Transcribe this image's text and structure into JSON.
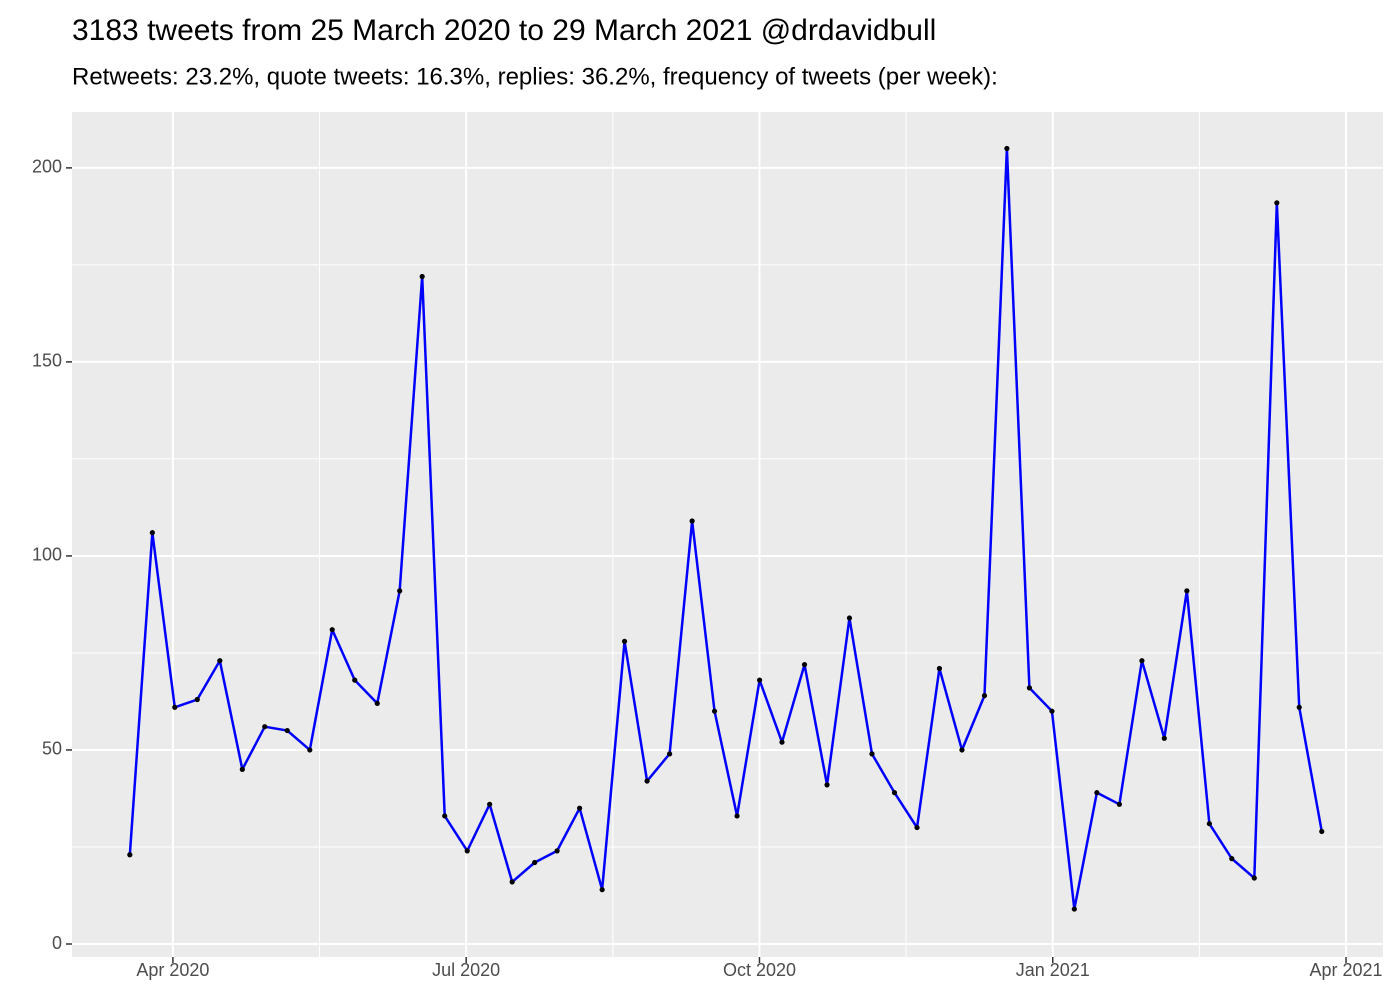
{
  "chart_data": {
    "type": "line",
    "title": "3183 tweets from 25 March 2020 to 29 March 2021 @drdavidbull",
    "subtitle": "Retweets: 23.2%, quote tweets: 16.3%, replies: 36.2%, frequency of tweets (per week):",
    "x": [
      2020.2133,
      2020.2325,
      2020.2516,
      2020.2708,
      2020.29,
      2020.3092,
      2020.3283,
      2020.3475,
      2020.3667,
      2020.3858,
      2020.405,
      2020.4242,
      2020.4433,
      2020.4625,
      2020.4817,
      2020.5009,
      2020.52,
      2020.5392,
      2020.5584,
      2020.5775,
      2020.5967,
      2020.6159,
      2020.635,
      2020.6542,
      2020.6734,
      2020.6926,
      2020.7117,
      2020.7309,
      2020.7501,
      2020.7692,
      2020.7884,
      2020.8076,
      2020.8267,
      2020.8459,
      2020.8651,
      2020.8843,
      2020.9034,
      2020.9226,
      2020.9418,
      2020.9609,
      2020.9801,
      2020.9993,
      2021.0184,
      2021.0376,
      2021.0568,
      2021.076,
      2021.0951,
      2021.1143,
      2021.1335,
      2021.1526,
      2021.1718,
      2021.191,
      2021.2101,
      2021.2293
    ],
    "series": [
      {
        "color": "#0000ff",
        "point_color": "#000000",
        "values": [
          23,
          106,
          61,
          63,
          73,
          45,
          56,
          55,
          50,
          81,
          68,
          62,
          91,
          172,
          33,
          24,
          36,
          16,
          21,
          24,
          35,
          14,
          78,
          42,
          49,
          109,
          60,
          33,
          68,
          52,
          72,
          41,
          84,
          49,
          39,
          30,
          71,
          50,
          64,
          205,
          66,
          60,
          9,
          39,
          36,
          73,
          53,
          91,
          31,
          22,
          17,
          191,
          61,
          29
        ]
      }
    ],
    "xlim": [
      2020.164,
      2021.2815
    ],
    "xticks": [
      {
        "value": 2020.25,
        "label": "Apr 2020"
      },
      {
        "value": 2020.5,
        "label": "Jul 2020"
      },
      {
        "value": 2020.75,
        "label": "Oct 2020"
      },
      {
        "value": 2021.0,
        "label": "Jan 2021"
      },
      {
        "value": 2021.25,
        "label": "Apr 2021"
      }
    ],
    "ylim": [
      -3.35,
      214.4
    ],
    "yticks": [
      0,
      50,
      100,
      150,
      200
    ],
    "grid": true
  }
}
